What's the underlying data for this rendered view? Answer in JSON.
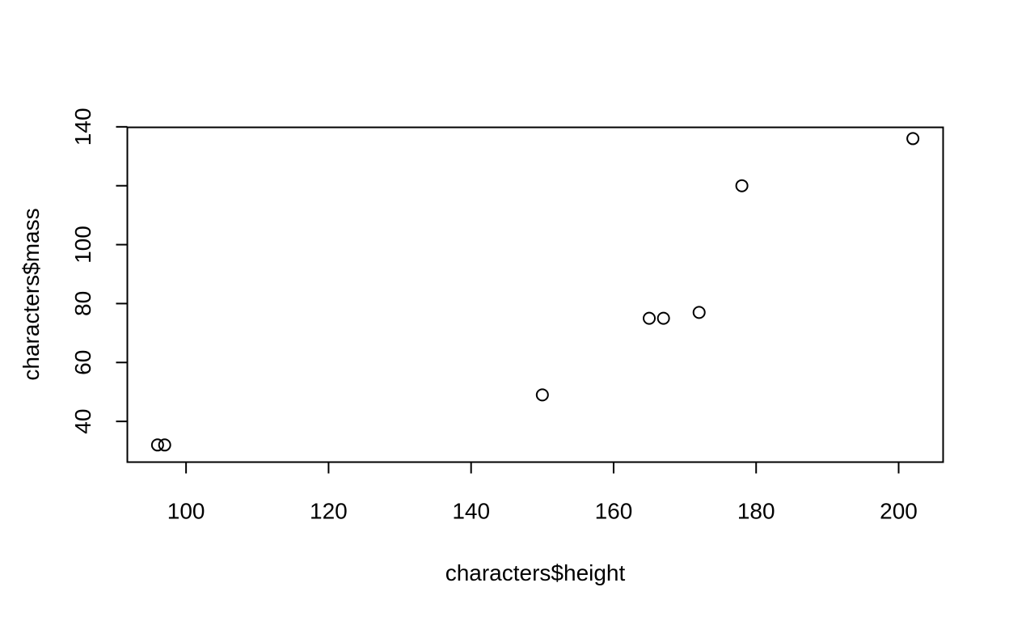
{
  "chart_data": {
    "type": "scatter",
    "title": "",
    "xlabel": "characters$height",
    "ylabel": "characters$mass",
    "xlim": [
      91.76,
      206.24
    ],
    "ylim": [
      26.18,
      139.82
    ],
    "xticks": [
      100,
      120,
      140,
      160,
      180,
      200
    ],
    "yticks": [
      40,
      60,
      80,
      100,
      120,
      140
    ],
    "ytick_labels": [
      "40",
      "60",
      "80",
      "100",
      "",
      "140"
    ],
    "grid": false,
    "legend": "none",
    "marker": "open-circle",
    "color": "#000000",
    "points": [
      {
        "x": 96,
        "y": 32
      },
      {
        "x": 97,
        "y": 32
      },
      {
        "x": 150,
        "y": 49
      },
      {
        "x": 165,
        "y": 75
      },
      {
        "x": 167,
        "y": 75
      },
      {
        "x": 172,
        "y": 77
      },
      {
        "x": 178,
        "y": 120
      },
      {
        "x": 202,
        "y": 136
      }
    ]
  }
}
